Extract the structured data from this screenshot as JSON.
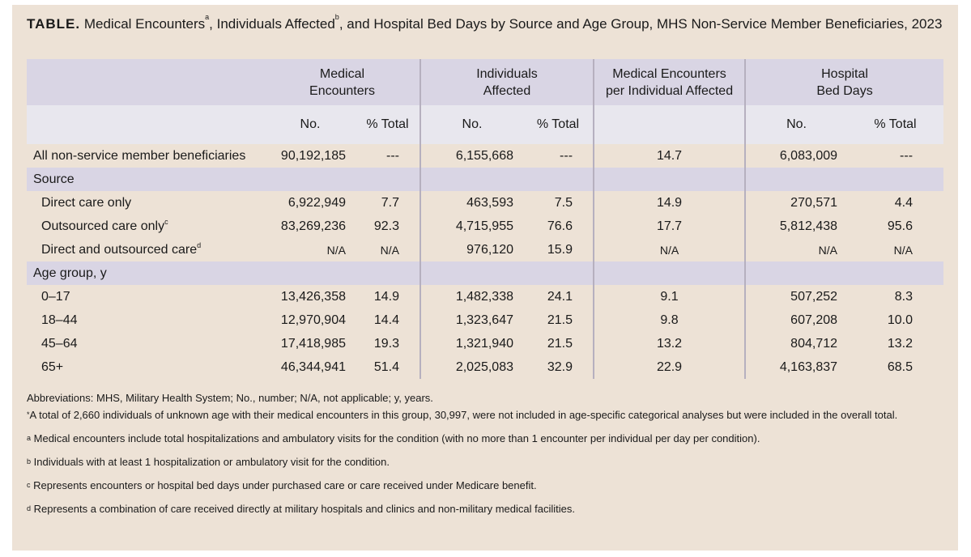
{
  "title": {
    "label": "TABLE.",
    "text_a": " Medical Encounters",
    "sup_a": "a",
    "text_b": ", Individuals Affected",
    "sup_b": "b",
    "text_c": ", and Hospital Bed Days by Source and Age Group, MHS Non-Service Member Beneficiaries, 2023"
  },
  "headers": {
    "group1_line1": "Medical",
    "group1_line2": "Encounters",
    "group2_line1": "Individuals",
    "group2_line2": "Affected",
    "group3_line1": "Medical Encounters",
    "group3_line2": "per Individual Affected",
    "group4_line1": "Hospital",
    "group4_line2": "Bed Days",
    "no": "No.",
    "pct": "% Total"
  },
  "rows": [
    {
      "label": "All non-service member beneficiaries",
      "enc_no": "90,192,185",
      "enc_pct": "---",
      "ind_no": "6,155,668",
      "ind_pct": "---",
      "per_ind": "14.7",
      "bed_no": "6,083,009",
      "bed_pct": "---"
    },
    {
      "section": "Source"
    },
    {
      "label": "Direct care only",
      "enc_no": "6,922,949",
      "enc_pct": "7.7",
      "ind_no": "463,593",
      "ind_pct": "7.5",
      "per_ind": "14.9",
      "bed_no": "270,571",
      "bed_pct": "4.4"
    },
    {
      "label": "Outsourced care only",
      "sup": "c",
      "enc_no": "83,269,236",
      "enc_pct": "92.3",
      "ind_no": "4,715,955",
      "ind_pct": "76.6",
      "per_ind": "17.7",
      "bed_no": "5,812,438",
      "bed_pct": "95.6"
    },
    {
      "label": "Direct and outsourced care",
      "sup": "d",
      "enc_no": "N/A",
      "enc_pct": "N/A",
      "ind_no": "976,120",
      "ind_pct": "15.9",
      "per_ind": "N/A",
      "bed_no": "N/A",
      "bed_pct": "N/A"
    },
    {
      "section": "Age group, y"
    },
    {
      "label": "0–17",
      "enc_no": "13,426,358",
      "enc_pct": "14.9",
      "ind_no": "1,482,338",
      "ind_pct": "24.1",
      "per_ind": "9.1",
      "bed_no": "507,252",
      "bed_pct": "8.3"
    },
    {
      "label": "18–44",
      "enc_no": "12,970,904",
      "enc_pct": "14.4",
      "ind_no": "1,323,647",
      "ind_pct": "21.5",
      "per_ind": "9.8",
      "bed_no": "607,208",
      "bed_pct": "10.0"
    },
    {
      "label": "45–64",
      "enc_no": "17,418,985",
      "enc_pct": "19.3",
      "ind_no": "1,321,940",
      "ind_pct": "21.5",
      "per_ind": "13.2",
      "bed_no": "804,712",
      "bed_pct": "13.2"
    },
    {
      "label": "65+",
      "enc_no": "46,344,941",
      "enc_pct": "51.4",
      "ind_no": "2,025,083",
      "ind_pct": "32.9",
      "per_ind": "22.9",
      "bed_no": "4,163,837",
      "bed_pct": "68.5"
    }
  ],
  "notes": {
    "abbreviations": "Abbreviations: MHS, Military Health System; No., number; N/A, not applicable; y, years.",
    "star_mark": "*",
    "star": "A total of 2,660 individuals of unknown age with their medical encounters in this group, 30,997, were not included in age-specific categorical analyses but were included in the overall total.",
    "a_mark": "a",
    "a": "Medical encounters include total hospitalizations and ambulatory visits for the condition (with no more than 1 encounter per individual per day per condition).",
    "b_mark": "b",
    "b": "Individuals with at least 1 hospitalization or ambulatory visit for the condition.",
    "c_mark": "c",
    "c": "Represents encounters or hospital bed days under purchased care or care received under Medicare benefit.",
    "d_mark": "d",
    "d": "Represents a combination of care received directly at military hospitals and clinics and non-military medical facilities."
  }
}
